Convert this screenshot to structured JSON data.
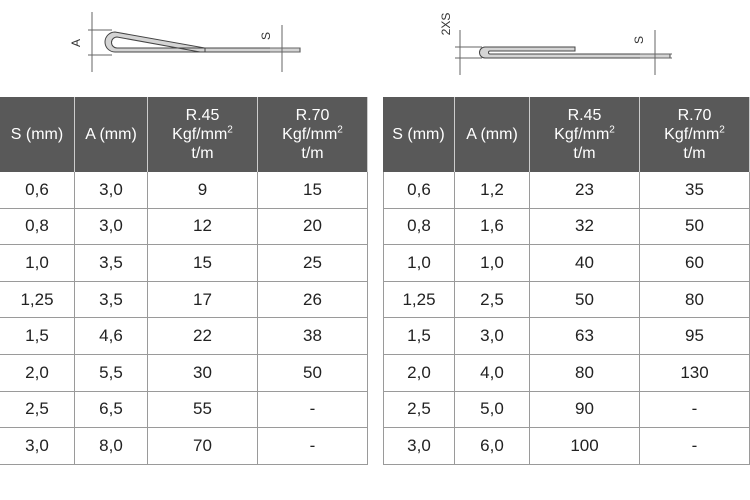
{
  "diagrams": [
    {
      "labels": [
        "A",
        "S"
      ]
    },
    {
      "labels": [
        "2XS",
        "S"
      ]
    }
  ],
  "tables": [
    {
      "header": [
        {
          "lines": [
            "S (mm)"
          ]
        },
        {
          "lines": [
            "A (mm)"
          ]
        },
        {
          "lines": [
            "R.45",
            "Kgf/mm",
            "t/m"
          ],
          "sup": "2"
        },
        {
          "lines": [
            "R.70",
            "Kgf/mm",
            "t/m"
          ],
          "sup": "2"
        }
      ],
      "rows": [
        [
          "0,6",
          "3,0",
          "9",
          "15"
        ],
        [
          "0,8",
          "3,0",
          "12",
          "20"
        ],
        [
          "1,0",
          "3,5",
          "15",
          "25"
        ],
        [
          "1,25",
          "3,5",
          "17",
          "26"
        ],
        [
          "1,5",
          "4,6",
          "22",
          "38"
        ],
        [
          "2,0",
          "5,5",
          "30",
          "50"
        ],
        [
          "2,5",
          "6,5",
          "55",
          "-"
        ],
        [
          "3,0",
          "8,0",
          "70",
          "-"
        ]
      ]
    },
    {
      "header": [
        {
          "lines": [
            "S (mm)"
          ]
        },
        {
          "lines": [
            "A (mm)"
          ]
        },
        {
          "lines": [
            "R.45",
            "Kgf/mm",
            "t/m"
          ],
          "sup": "2"
        },
        {
          "lines": [
            "R.70",
            "Kgf/mm",
            "t/m"
          ],
          "sup": "2"
        }
      ],
      "rows": [
        [
          "0,6",
          "1,2",
          "23",
          "35"
        ],
        [
          "0,8",
          "1,6",
          "32",
          "50"
        ],
        [
          "1,0",
          "1,0",
          "40",
          "60"
        ],
        [
          "1,25",
          "2,5",
          "50",
          "80"
        ],
        [
          "1,5",
          "3,0",
          "63",
          "95"
        ],
        [
          "2,0",
          "4,0",
          "80",
          "130"
        ],
        [
          "2,5",
          "5,0",
          "90",
          "-"
        ],
        [
          "3,0",
          "6,0",
          "100",
          "-"
        ]
      ]
    }
  ]
}
